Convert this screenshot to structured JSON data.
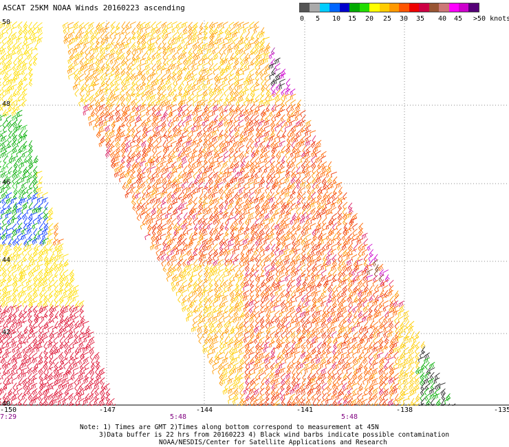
{
  "title": "ASCAT 25KM NOAA Winds 20160223 ascending",
  "colorbar": {
    "colors": [
      "#555555",
      "#aaaaaa",
      "#00ccff",
      "#0066ff",
      "#0000cc",
      "#00aa00",
      "#22dd00",
      "#ffff00",
      "#ffcc00",
      "#ff9900",
      "#ff5500",
      "#ee0000",
      "#cc0044",
      "#995533",
      "#cc7777",
      "#ff00ff",
      "#cc00cc",
      "#550077"
    ],
    "labels": [
      "0",
      "5",
      "10",
      "15",
      "20",
      "25",
      "30",
      "35",
      "40",
      "45",
      ">50 knots"
    ]
  },
  "map": {
    "lat_labels": [
      "50",
      "48",
      "46",
      "44",
      "42",
      "40"
    ],
    "lon_labels": [
      "-150",
      "-147",
      "-144",
      "-141",
      "-138",
      "-135"
    ],
    "times": [
      "7:29",
      "5:48",
      "5:48"
    ],
    "grid_color": "#888888"
  },
  "notes": [
    "Note: 1) Times are GMT 2)Times along bottom correspond to measurement at 45N",
    "3)Data buffer is 22 hrs from 20160223 4) Black wind barbs indicate possible contamination",
    "NOAA/NESDIS/Center for Satellite Applications and Research"
  ]
}
